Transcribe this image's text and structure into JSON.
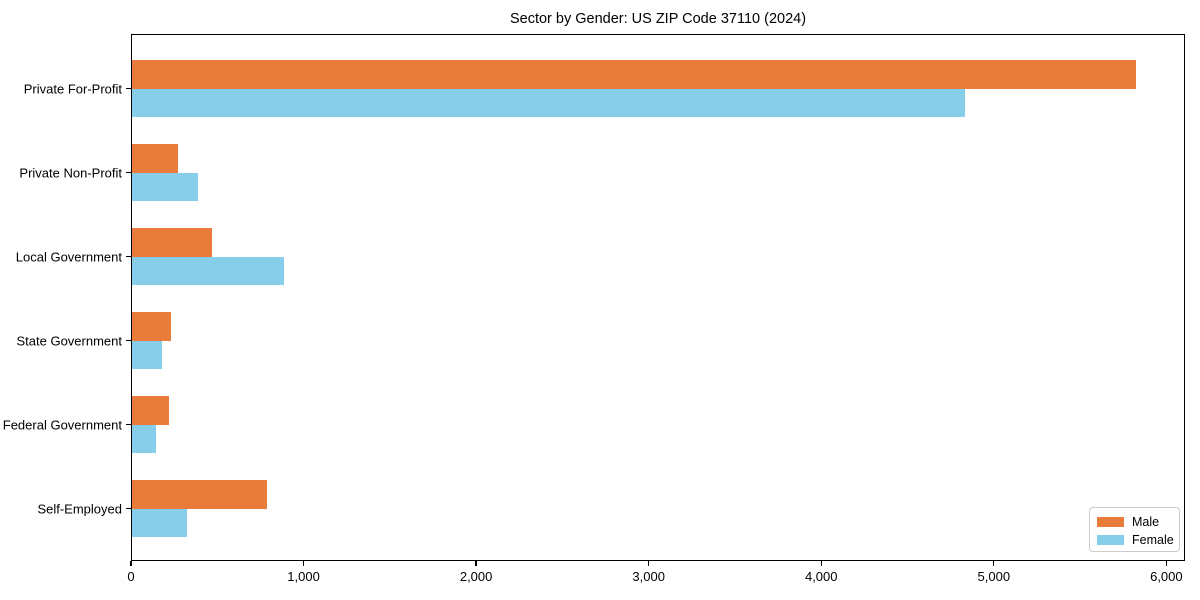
{
  "chart_data": {
    "type": "bar",
    "orientation": "horizontal",
    "title": "Sector by Gender: US ZIP Code 37110 (2024)",
    "xlabel": "",
    "ylabel": "",
    "categories": [
      "Private For-Profit",
      "Private Non-Profit",
      "Local Government",
      "State Government",
      "Federal Government",
      "Self-Employed"
    ],
    "series": [
      {
        "name": "Male",
        "color": "#E97B3B",
        "values": [
          5817,
          265,
          462,
          226,
          213,
          782
        ]
      },
      {
        "name": "Female",
        "color": "#87CEEB",
        "values": [
          4828,
          382,
          879,
          176,
          139,
          319
        ]
      }
    ],
    "xlim": [
      0,
      6108
    ],
    "xticks": {
      "values": [
        0,
        1000,
        2000,
        3000,
        4000,
        5000,
        6000
      ],
      "labels": [
        "0",
        "1,000",
        "2,000",
        "3,000",
        "4,000",
        "5,000",
        "6,000"
      ]
    },
    "grid": false,
    "legend": {
      "position": "lower right"
    },
    "axis_color": "#000000",
    "background_color": "#ffffff"
  }
}
